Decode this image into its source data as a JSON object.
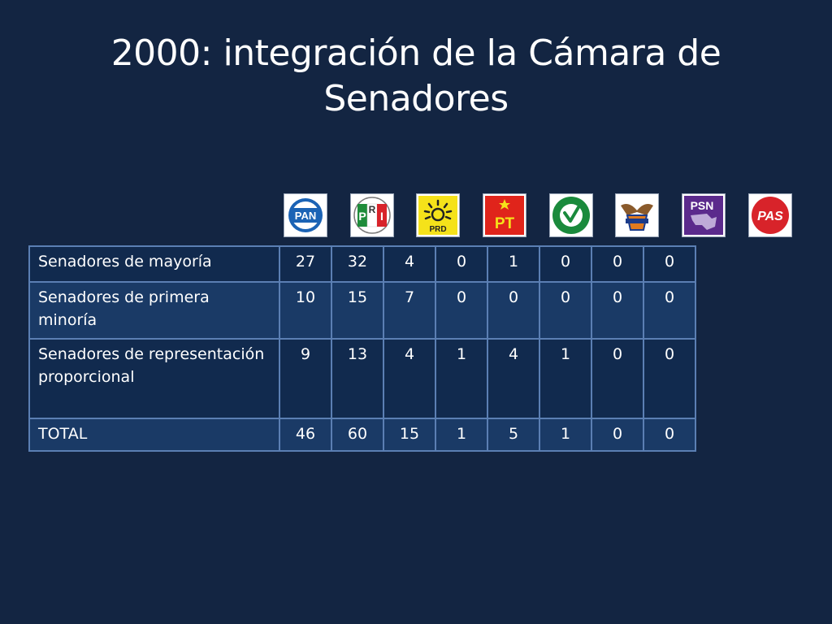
{
  "title_line1": "2000: integración de la Cámara de",
  "title_line2": "Senadores",
  "logos": [
    {
      "icon": "pan-logo",
      "text": "PAN"
    },
    {
      "icon": "pri-logo",
      "text": "PRI"
    },
    {
      "icon": "prd-logo",
      "text": "PRD"
    },
    {
      "icon": "pt-logo",
      "text": "PT"
    },
    {
      "icon": "pvem-logo",
      "text": ""
    },
    {
      "icon": "convergencia-logo",
      "text": ""
    },
    {
      "icon": "psn-logo",
      "text": "PSN"
    },
    {
      "icon": "pas-logo",
      "text": "PAS"
    }
  ],
  "table": {
    "rows": [
      {
        "label": "Senadores de mayoría",
        "values": [
          "27",
          "32",
          "4",
          "0",
          "1",
          "0",
          "0",
          "0"
        ]
      },
      {
        "label": "Senadores de primera minoría",
        "values": [
          "10",
          "15",
          "7",
          "0",
          "0",
          "0",
          "0",
          "0"
        ]
      },
      {
        "label": "Senadores de representación proporcional",
        "values": [
          "9",
          "13",
          "4",
          "1",
          "4",
          "1",
          "0",
          "0"
        ]
      },
      {
        "label": "TOTAL",
        "values": [
          "46",
          "60",
          "15",
          "1",
          "5",
          "1",
          "0",
          "0"
        ]
      }
    ]
  }
}
